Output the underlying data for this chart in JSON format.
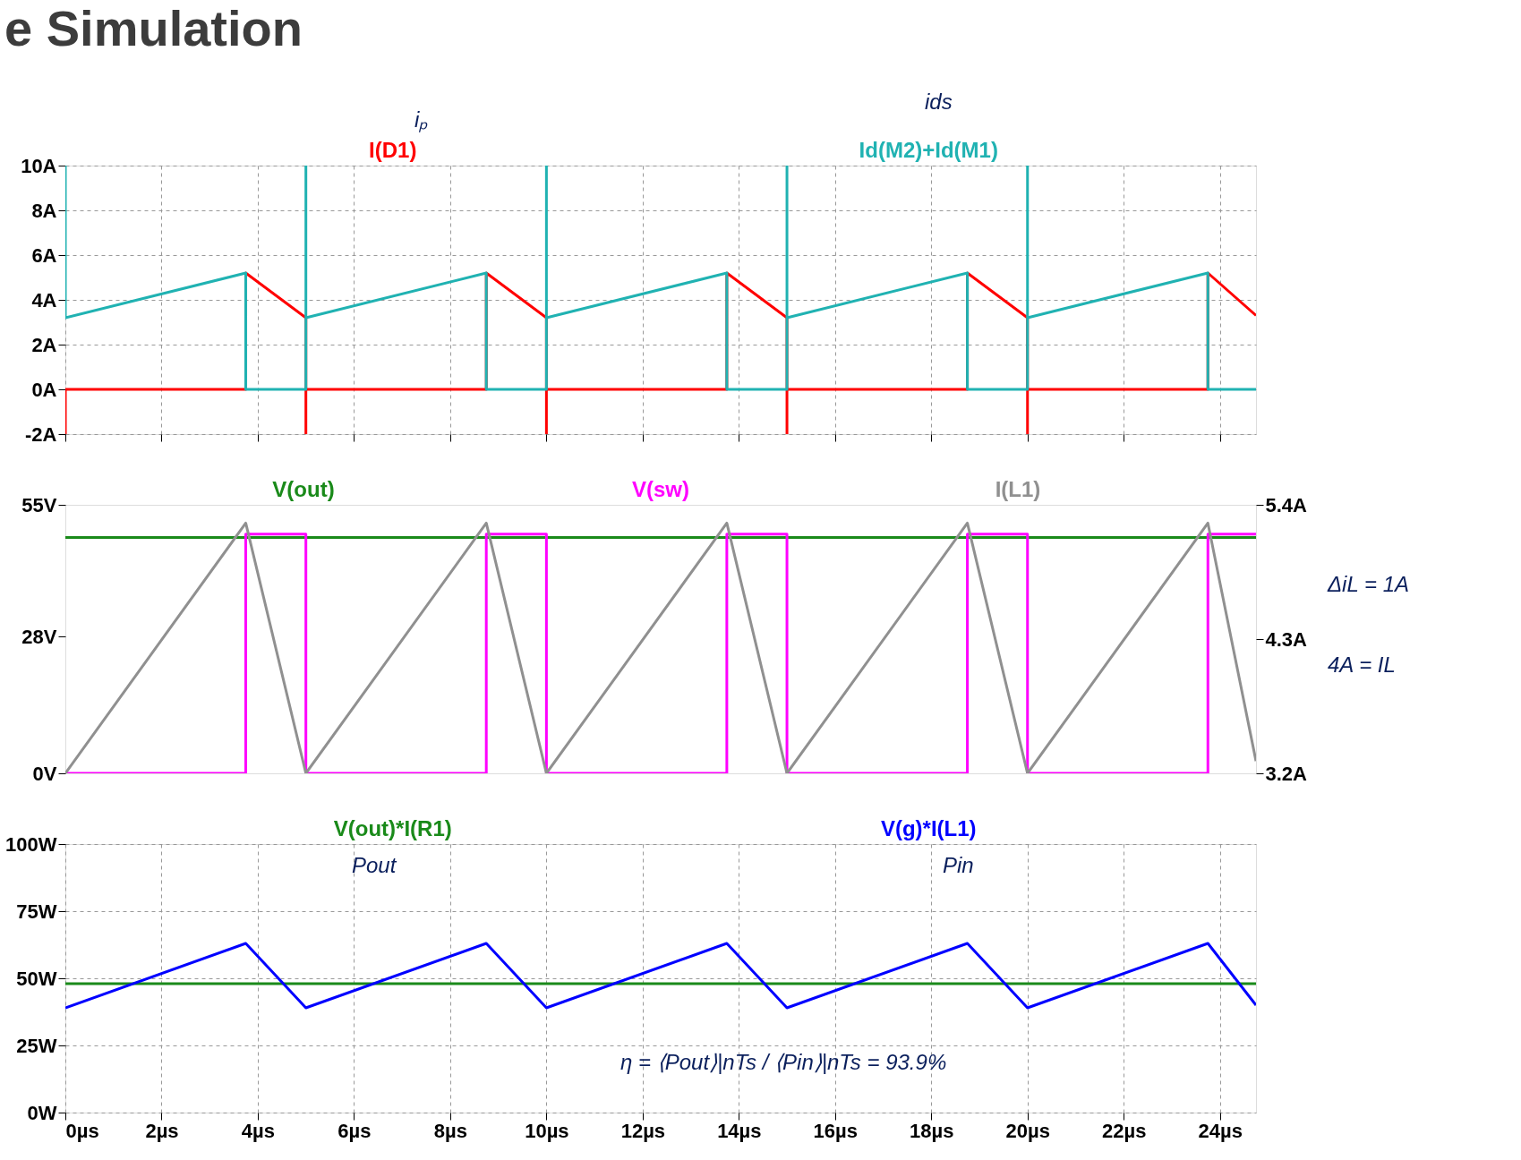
{
  "chart_data": [
    {
      "type": "line",
      "title": "e Simulation",
      "xlim": [
        0,
        24.75
      ],
      "ylim": [
        -2,
        10
      ],
      "grid": true,
      "tick_labels": "y",
      "xticks": [
        0,
        2,
        4,
        6,
        8,
        10,
        12,
        14,
        16,
        18,
        20,
        22,
        24
      ],
      "yticks": [
        {
          "value": -2,
          "label": "-2A"
        },
        {
          "value": 0,
          "label": "0A"
        },
        {
          "value": 2,
          "label": "2A"
        },
        {
          "value": 4,
          "label": "4A"
        },
        {
          "value": 6,
          "label": "6A"
        },
        {
          "value": 8,
          "label": "8A"
        },
        {
          "value": 10,
          "label": "10A"
        }
      ],
      "annotations": [
        "iₚ",
        "ids"
      ],
      "series": [
        {
          "name": "I(D1)",
          "color": "#ff0000",
          "x": [
            0,
            0,
            3.75,
            3.75,
            5,
            5,
            5,
            8.75,
            8.75,
            10,
            10,
            10,
            13.75,
            13.75,
            15,
            15,
            15,
            18.75,
            18.75,
            20,
            20,
            20,
            23.75,
            23.75,
            24.75
          ],
          "values": [
            -2,
            0,
            0,
            5.2,
            3.2,
            -2,
            0,
            0,
            5.2,
            3.2,
            -2,
            0,
            0,
            5.2,
            3.2,
            -2,
            0,
            0,
            5.2,
            3.2,
            -2,
            0,
            0,
            5.2,
            3.3
          ]
        },
        {
          "name": "Id(M2)+Id(M1)",
          "color": "#20b2b2",
          "x": [
            0,
            0,
            3.75,
            3.75,
            5,
            5,
            5,
            8.75,
            8.75,
            10,
            10,
            10,
            13.75,
            13.75,
            15,
            15,
            15,
            18.75,
            18.75,
            20,
            20,
            20,
            23.75,
            23.75,
            24.75
          ],
          "values": [
            10,
            3.2,
            5.2,
            0,
            0,
            10,
            3.2,
            5.2,
            0,
            0,
            10,
            3.2,
            5.2,
            0,
            0,
            10,
            3.2,
            5.2,
            0,
            0,
            10,
            3.2,
            5.2,
            0,
            0
          ]
        }
      ]
    },
    {
      "type": "line",
      "xlim": [
        0,
        24.75
      ],
      "ylim": [
        0,
        55
      ],
      "y2lim": [
        3.2,
        5.4
      ],
      "tick_labels": "y",
      "xticks": [
        0,
        2,
        4,
        6,
        8,
        10,
        12,
        14,
        16,
        18,
        20,
        22,
        24
      ],
      "yticks": [
        {
          "value": 0,
          "label": "0V"
        },
        {
          "value": 28,
          "label": "28V"
        },
        {
          "value": 55,
          "label": "55V"
        }
      ],
      "y2ticks": [
        {
          "value": 3.2,
          "label": "3.2A"
        },
        {
          "value": 4.3,
          "label": "4.3A"
        },
        {
          "value": 5.4,
          "label": "5.4A"
        }
      ],
      "annotations": [
        "ΔiL = 1A",
        "4A = IL"
      ],
      "series": [
        {
          "name": "V(out)",
          "color": "#1a8a1a",
          "x": [
            0,
            24.75
          ],
          "values": [
            48.3,
            48.3
          ]
        },
        {
          "name": "V(sw)",
          "color": "#ff00ff",
          "x": [
            0,
            3.75,
            3.75,
            5,
            5,
            8.75,
            8.75,
            10,
            10,
            13.75,
            13.75,
            15,
            15,
            18.75,
            18.75,
            20,
            20,
            23.75,
            23.75,
            24.75
          ],
          "values": [
            0,
            0,
            49,
            49,
            0,
            0,
            49,
            49,
            0,
            0,
            49,
            49,
            0,
            0,
            49,
            49,
            0,
            0,
            49,
            49
          ]
        },
        {
          "name": "I(L1)",
          "color": "#909090",
          "axis": "y2",
          "x": [
            0,
            3.75,
            5,
            8.75,
            10,
            13.75,
            15,
            18.75,
            20,
            23.75,
            24.75
          ],
          "values": [
            3.2,
            5.25,
            3.2,
            5.25,
            3.2,
            5.25,
            3.2,
            5.25,
            3.2,
            5.25,
            3.3
          ]
        }
      ]
    },
    {
      "type": "line",
      "xlim": [
        0,
        24.75
      ],
      "ylim": [
        0,
        100
      ],
      "grid": true,
      "xticks": [
        {
          "value": 0,
          "label": "0µs"
        },
        {
          "value": 2,
          "label": "2µs"
        },
        {
          "value": 4,
          "label": "4µs"
        },
        {
          "value": 6,
          "label": "6µs"
        },
        {
          "value": 8,
          "label": "8µs"
        },
        {
          "value": 10,
          "label": "10µs"
        },
        {
          "value": 12,
          "label": "12µs"
        },
        {
          "value": 14,
          "label": "14µs"
        },
        {
          "value": 16,
          "label": "16µs"
        },
        {
          "value": 18,
          "label": "18µs"
        },
        {
          "value": 20,
          "label": "20µs"
        },
        {
          "value": 22,
          "label": "22µs"
        },
        {
          "value": 24,
          "label": "24µs"
        }
      ],
      "yticks": [
        {
          "value": 0,
          "label": "0W"
        },
        {
          "value": 25,
          "label": "25W"
        },
        {
          "value": 50,
          "label": "50W"
        },
        {
          "value": 75,
          "label": "75W"
        },
        {
          "value": 100,
          "label": "100W"
        }
      ],
      "annotations": [
        "Pout",
        "Pin",
        "η = ⟨Pout⟩|nTs / ⟨Pin⟩|nTs = 93.9%"
      ],
      "series": [
        {
          "name": "V(out)*I(R1)",
          "color": "#1a8a1a",
          "x": [
            0,
            24.75
          ],
          "values": [
            48,
            48
          ]
        },
        {
          "name": "V(g)*I(L1)",
          "color": "#0000ff",
          "x": [
            0,
            3.75,
            5,
            8.75,
            10,
            13.75,
            15,
            18.75,
            20,
            23.75,
            24.75
          ],
          "values": [
            39,
            63,
            39,
            63,
            39,
            63,
            39,
            63,
            39,
            63,
            40
          ]
        }
      ]
    }
  ]
}
